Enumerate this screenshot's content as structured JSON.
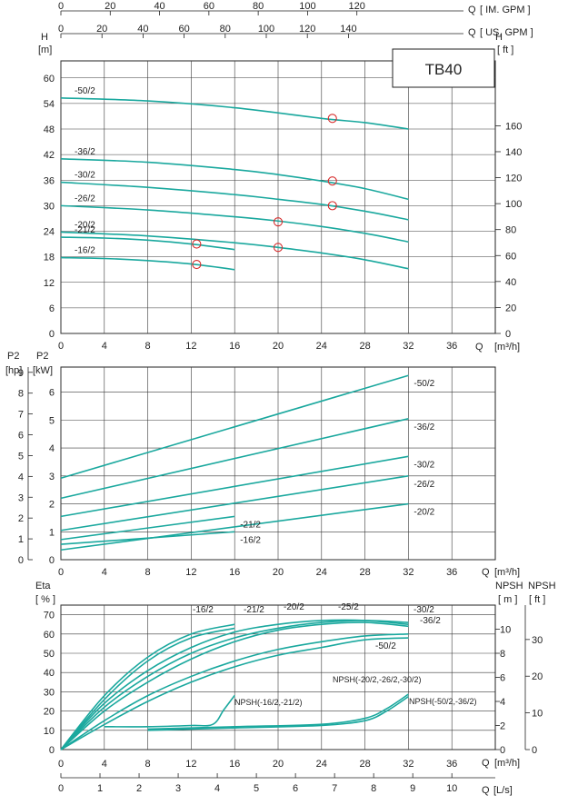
{
  "chart_data": [
    {
      "panel": "head",
      "type": "line",
      "title": "TB40",
      "ylabel_left": "H",
      "yunit_left": "[m]",
      "ylabel_right": "H",
      "yunit_right": "[ ft ]",
      "xlabel": "Q",
      "xunit": "[m³/h]",
      "xlim": [
        0,
        40
      ],
      "ylim": [
        0,
        64
      ],
      "xticks": [
        0,
        4,
        8,
        12,
        16,
        20,
        24,
        28,
        32,
        36
      ],
      "yticks_left": [
        0,
        6,
        12,
        18,
        24,
        30,
        36,
        42,
        48,
        54,
        60
      ],
      "yticks_right": [
        0,
        20,
        40,
        60,
        80,
        100,
        120,
        140,
        160
      ],
      "top_axis_im_gpm": {
        "label": "Q",
        "unit": "[ IM. GPM ]",
        "ticks": [
          0,
          20,
          40,
          60,
          80,
          100,
          120
        ]
      },
      "top_axis_us_gpm": {
        "label": "Q",
        "unit": "[ US. GPM ]",
        "ticks": [
          0,
          20,
          40,
          60,
          80,
          100,
          120,
          140
        ]
      },
      "series": [
        {
          "name": "-50/2",
          "x": [
            0,
            8,
            16,
            24,
            28,
            32
          ],
          "y": [
            55.3,
            54.6,
            53.0,
            50.5,
            49.5,
            48.0
          ]
        },
        {
          "name": "-36/2",
          "x": [
            0,
            8,
            16,
            20,
            24,
            28,
            32
          ],
          "y": [
            41.0,
            40.2,
            38.5,
            37.3,
            35.8,
            34.0,
            31.5
          ]
        },
        {
          "name": "-30/2",
          "x": [
            0,
            8,
            16,
            20,
            24,
            28,
            32
          ],
          "y": [
            35.5,
            34.3,
            32.6,
            31.5,
            30.3,
            28.7,
            26.7
          ]
        },
        {
          "name": "-26/2",
          "x": [
            0,
            8,
            16,
            20,
            24,
            28,
            32
          ],
          "y": [
            30.0,
            29.0,
            27.4,
            26.4,
            25.1,
            23.5,
            21.5
          ]
        },
        {
          "name": "-20/2",
          "x": [
            0,
            8,
            16,
            20,
            24,
            28,
            32
          ],
          "y": [
            23.8,
            22.9,
            21.3,
            20.2,
            18.9,
            17.3,
            15.2
          ]
        },
        {
          "name": "-21/2",
          "x": [
            0,
            4,
            8,
            12,
            16
          ],
          "y": [
            22.6,
            22.4,
            21.9,
            21.0,
            19.7
          ]
        },
        {
          "name": "-16/2",
          "x": [
            0,
            4,
            8,
            12,
            16
          ],
          "y": [
            17.8,
            17.6,
            17.1,
            16.3,
            15.0
          ]
        }
      ],
      "duty_points": [
        {
          "series": "-50/2",
          "x": 25,
          "y": 50.5
        },
        {
          "series": "-36/2",
          "x": 25,
          "y": 35.8
        },
        {
          "series": "-30/2",
          "x": 25,
          "y": 30.0
        },
        {
          "series": "-26/2",
          "x": 20,
          "y": 26.2
        },
        {
          "series": "-20/2",
          "x": 20,
          "y": 20.2
        },
        {
          "series": "-21/2",
          "x": 12.5,
          "y": 21.0
        },
        {
          "series": "-16/2",
          "x": 12.5,
          "y": 16.2
        }
      ]
    },
    {
      "panel": "power",
      "type": "line",
      "ylabel_left_hp": "P2",
      "yunit_left_hp": "[hp]",
      "ylabel_left_kw": "P2",
      "yunit_left_kw": "[kW]",
      "xlabel": "Q",
      "xunit": "[m³/h]",
      "xlim": [
        0,
        40
      ],
      "ylim": [
        0,
        6.9
      ],
      "xticks": [
        0,
        4,
        8,
        12,
        16,
        20,
        24,
        28,
        32,
        36
      ],
      "yticks_kw": [
        0,
        1,
        2,
        3,
        4,
        5,
        6
      ],
      "yticks_hp": [
        0,
        1,
        2,
        3,
        4,
        5,
        6,
        7,
        8,
        9
      ],
      "series": [
        {
          "name": "-50/2",
          "x": [
            0,
            32
          ],
          "y": [
            2.92,
            6.6
          ]
        },
        {
          "name": "-36/2",
          "x": [
            0,
            32
          ],
          "y": [
            2.2,
            5.05
          ]
        },
        {
          "name": "-30/2",
          "x": [
            0,
            32
          ],
          "y": [
            1.55,
            3.7
          ]
        },
        {
          "name": "-26/2",
          "x": [
            0,
            32
          ],
          "y": [
            1.05,
            3.0
          ]
        },
        {
          "name": "-20/2",
          "x": [
            0,
            32
          ],
          "y": [
            0.35,
            2.0
          ]
        },
        {
          "name": "-21/2",
          "x": [
            0,
            16
          ],
          "y": [
            0.72,
            1.55
          ]
        },
        {
          "name": "-16/2",
          "x": [
            0,
            16
          ],
          "y": [
            0.55,
            1.0
          ]
        }
      ]
    },
    {
      "panel": "efficiency",
      "type": "line",
      "ylabel_left": "Eta",
      "yunit_left": "[ % ]",
      "ylabel_npsh_m": "NPSH",
      "yunit_npsh_m": "[ m ]",
      "ylabel_npsh_ft": "NPSH",
      "yunit_npsh_ft": "[ ft ]",
      "xlabel": "Q",
      "xunit": "[m³/h]",
      "xlabel_ls": "Q",
      "xunit_ls": "[L/s]",
      "xlim": [
        0,
        40
      ],
      "ylim": [
        0,
        75
      ],
      "xticks": [
        0,
        4,
        8,
        12,
        16,
        20,
        24,
        28,
        32,
        36
      ],
      "xticks_ls": [
        0,
        1,
        2,
        3,
        4,
        5,
        6,
        7,
        8,
        9,
        10
      ],
      "yticks_eta": [
        0,
        10,
        20,
        30,
        40,
        50,
        60,
        70
      ],
      "yticks_npsh_m": [
        0,
        2,
        4,
        6,
        8,
        10
      ],
      "yticks_npsh_ft": [
        0,
        10,
        20,
        30
      ],
      "series": [
        {
          "name": "-16/2",
          "x": [
            0,
            4,
            8,
            12,
            16
          ],
          "y": [
            0,
            28,
            48,
            60,
            65
          ]
        },
        {
          "name": "-21/2",
          "x": [
            0,
            4,
            8,
            12,
            16
          ],
          "y": [
            0,
            26,
            46,
            58,
            63
          ]
        },
        {
          "name": "-20/2",
          "x": [
            0,
            4,
            8,
            12,
            16,
            20,
            24,
            28,
            32
          ],
          "y": [
            0,
            24,
            41,
            53,
            61,
            65,
            67,
            67,
            65
          ]
        },
        {
          "name": "-25/2",
          "x": [
            0,
            4,
            8,
            12,
            16,
            20,
            24,
            28,
            32
          ],
          "y": [
            0,
            22,
            38,
            50,
            58,
            63,
            66,
            67,
            66
          ]
        },
        {
          "name": "-30/2",
          "x": [
            0,
            4,
            8,
            12,
            16,
            20,
            24,
            28,
            32
          ],
          "y": [
            0,
            20,
            35,
            47,
            56,
            62,
            65,
            66,
            64
          ]
        },
        {
          "name": "-36/2",
          "x": [
            0,
            4,
            8,
            12,
            16,
            20,
            24,
            28,
            32
          ],
          "y": [
            0,
            15,
            28,
            38,
            46,
            52,
            56,
            59,
            60
          ]
        },
        {
          "name": "-50/2",
          "x": [
            0,
            4,
            8,
            12,
            16,
            20,
            24,
            28,
            32
          ],
          "y": [
            0,
            13,
            25,
            35,
            43,
            49,
            53,
            57,
            58
          ]
        }
      ],
      "npsh_series": [
        {
          "name": "NPSH(-16/2,-21/2)",
          "x": [
            4,
            8,
            12,
            14,
            15,
            16
          ],
          "y": [
            1.9,
            1.9,
            2.0,
            2.1,
            3.3,
            4.5
          ]
        },
        {
          "name": "NPSH(-20/2,-26/2,-30/2)",
          "x": [
            8,
            16,
            24,
            28,
            30,
            32
          ],
          "y": [
            1.6,
            1.8,
            2.0,
            2.4,
            3.2,
            4.4
          ]
        },
        {
          "name": "NPSH(-50/2,-36/2)",
          "x": [
            8,
            16,
            24,
            28,
            30,
            32
          ],
          "y": [
            1.7,
            1.9,
            2.1,
            2.6,
            3.4,
            4.6
          ]
        }
      ]
    }
  ]
}
